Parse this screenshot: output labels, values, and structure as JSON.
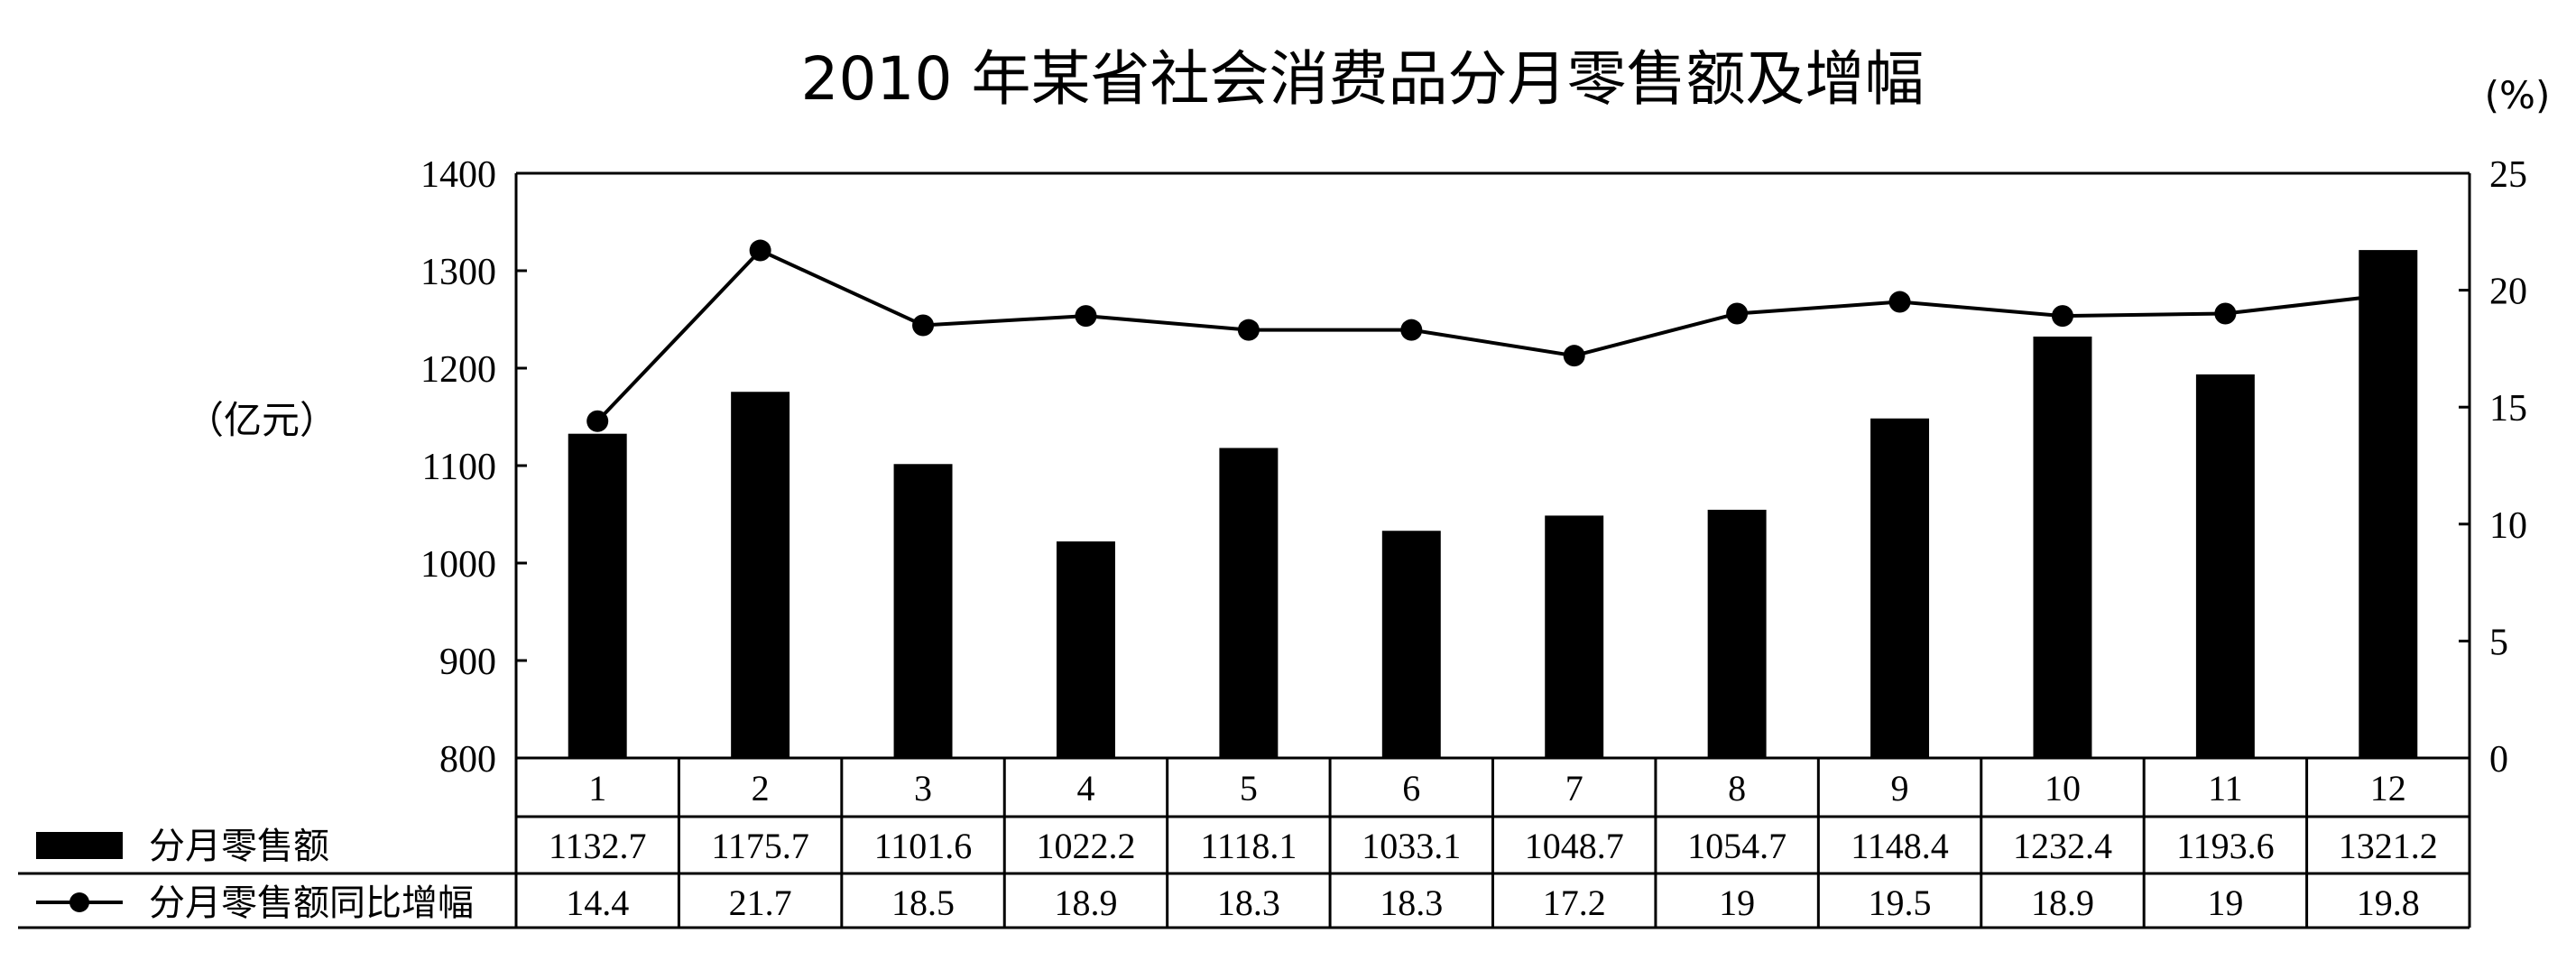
{
  "chart_data": {
    "type": "bar",
    "title": "2010 年某省社会消费品分月零售额及增幅",
    "left_unit": "（亿元）",
    "right_unit": "(%)",
    "categories": [
      "1",
      "2",
      "3",
      "4",
      "5",
      "6",
      "7",
      "8",
      "9",
      "10",
      "11",
      "12"
    ],
    "y_left": {
      "min": 800,
      "max": 1400,
      "step": 100,
      "ticks": [
        "800",
        "900",
        "1000",
        "1100",
        "1200",
        "1300",
        "1400"
      ]
    },
    "y_right": {
      "min": 0,
      "max": 25,
      "step": 5,
      "ticks": [
        "0",
        "5",
        "10",
        "15",
        "20",
        "25"
      ]
    },
    "series": [
      {
        "name": "分月零售额",
        "type": "bar",
        "axis": "left",
        "color": "#000000",
        "values": [
          1132.7,
          1175.7,
          1101.6,
          1022.2,
          1118.1,
          1033.1,
          1048.7,
          1054.7,
          1148.4,
          1232.4,
          1193.6,
          1321.2
        ],
        "labels": [
          "1132.7",
          "1175.7",
          "1101.6",
          "1022.2",
          "1118.1",
          "1033.1",
          "1048.7",
          "1054.7",
          "1148.4",
          "1232.4",
          "1193.6",
          "1321.2"
        ]
      },
      {
        "name": "分月零售额同比增幅",
        "type": "line",
        "axis": "right",
        "color": "#000000",
        "values": [
          14.4,
          21.7,
          18.5,
          18.9,
          18.3,
          18.3,
          17.2,
          19,
          19.5,
          18.9,
          19,
          19.8
        ],
        "labels": [
          "14.4",
          "21.7",
          "18.5",
          "18.9",
          "18.3",
          "18.3",
          "17.2",
          "19",
          "19.5",
          "18.9",
          "19",
          "19.8"
        ]
      }
    ],
    "legend": "bottom-left data table"
  }
}
